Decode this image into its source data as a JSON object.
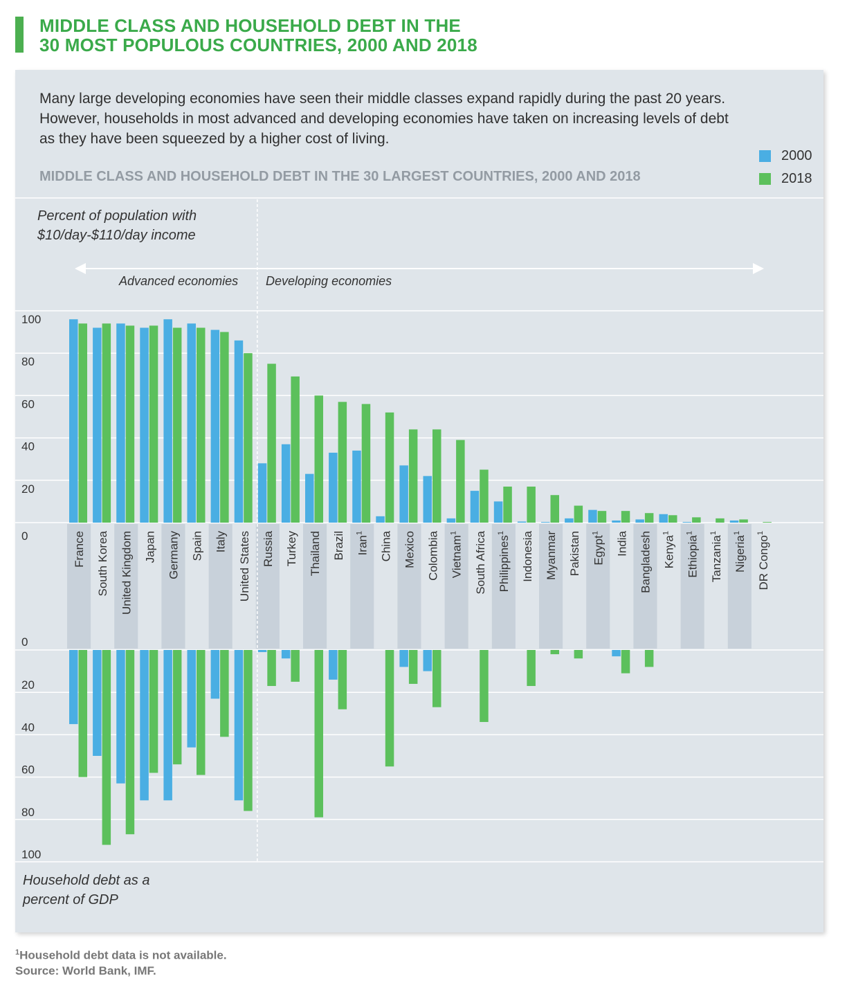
{
  "title": {
    "line1": "MIDDLE CLASS AND HOUSEHOLD DEBT IN THE",
    "line2": "30 MOST POPULOUS COUNTRIES, 2000 AND 2018"
  },
  "intro": "Many large developing economies have seen their middle classes expand rapidly during the past 20 years. However, households in most advanced and developing economies have taken on increasing levels of debt as they have been squeezed by a higher cost of living.",
  "colors": {
    "accent": "#3aaa4a",
    "series_2000": "#4aaee3",
    "series_2018": "#5cc05c",
    "panel": "#dfe5ea"
  },
  "footnotes": {
    "marker": "1",
    "note": "Household debt data is not available.",
    "source": "Source: World Bank, IMF."
  },
  "chart_data": {
    "type": "bar",
    "title": "MIDDLE CLASS AND HOUSEHOLD DEBT IN THE 30 LARGEST COUNTRIES, 2000 AND 2018",
    "legend": [
      "2000",
      "2018"
    ],
    "legend_position": "top-right",
    "top_panel": {
      "ylabel_line1": "Percent of population with",
      "ylabel_line2": "$10/day-$110/day income",
      "yticks": [
        0,
        20,
        40,
        60,
        80,
        100
      ],
      "ylim": [
        0,
        100
      ]
    },
    "bottom_panel": {
      "ylabel_line1": "Household debt as a",
      "ylabel_line2": "percent of GDP",
      "yticks": [
        0,
        20,
        40,
        60,
        80,
        100
      ],
      "ylim": [
        0,
        100
      ]
    },
    "groups": {
      "advanced": "Advanced economies",
      "developing": "Developing economies",
      "advanced_count": 8
    },
    "categories": [
      "France",
      "South Korea",
      "United Kingdom",
      "Japan",
      "Germany",
      "Spain",
      "Italy",
      "United States",
      "Russia",
      "Turkey",
      "Thailand",
      "Brazil",
      "Iran",
      "China",
      "Mexico",
      "Colombia",
      "Vietnam",
      "South Africa",
      "Philippines",
      "Indonesia",
      "Myanmar",
      "Pakistan",
      "Egypt",
      "India",
      "Bangladesh",
      "Kenya",
      "Ethiopia",
      "Tanzania",
      "Nigeria",
      "DR Congo"
    ],
    "footnoted_categories": [
      "Iran",
      "Vietnam",
      "Philippines",
      "Egypt",
      "Kenya",
      "Ethiopia",
      "Tanzania",
      "Nigeria",
      "DR Congo"
    ],
    "series": [
      {
        "name": "2000",
        "middle_class": [
          96,
          92,
          94,
          92,
          96,
          94,
          91,
          86,
          28,
          37,
          23,
          33,
          34,
          3,
          27,
          22,
          2,
          15,
          10,
          0.5,
          0.3,
          2,
          6,
          1,
          1.5,
          4,
          0.3,
          0,
          1,
          0
        ],
        "household_debt": [
          35,
          50,
          63,
          71,
          71,
          46,
          23,
          71,
          1,
          4,
          null,
          14,
          null,
          null,
          8,
          10,
          null,
          null,
          null,
          null,
          null,
          null,
          null,
          3,
          null,
          null,
          null,
          null,
          null,
          null
        ]
      },
      {
        "name": "2018",
        "middle_class": [
          94,
          94,
          93,
          93,
          92,
          92,
          90,
          80,
          75,
          69,
          60,
          57,
          56,
          52,
          44,
          44,
          39,
          25,
          17,
          17,
          13,
          8,
          5.5,
          5.5,
          4.5,
          3.5,
          2.5,
          2,
          1.5,
          0.3
        ],
        "household_debt": [
          60,
          92,
          87,
          58,
          54,
          59,
          41,
          76,
          17,
          15,
          79,
          28,
          null,
          55,
          16,
          27,
          null,
          34,
          null,
          17,
          2,
          4,
          null,
          11,
          8,
          null,
          null,
          null,
          null,
          null
        ]
      }
    ]
  }
}
